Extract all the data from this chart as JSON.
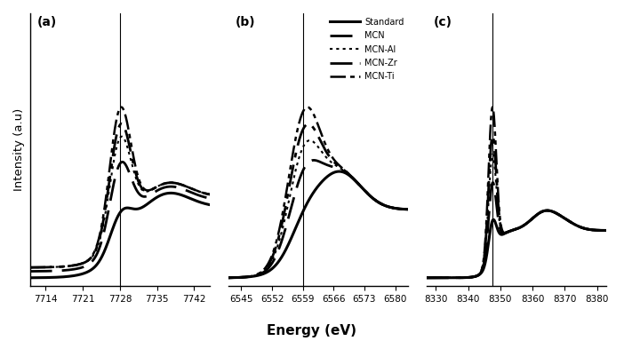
{
  "panels": [
    {
      "label": "(a)",
      "xmin": 7711,
      "xmax": 7745,
      "xticks": [
        7714,
        7721,
        7728,
        7735,
        7742
      ],
      "edge_energy": 7728.0,
      "show_vline": true
    },
    {
      "label": "(b)",
      "xmin": 6542,
      "xmax": 6583,
      "xticks": [
        6545,
        6552,
        6559,
        6566,
        6573,
        6580
      ],
      "edge_energy": 6559.0,
      "show_vline": true,
      "show_legend": true
    },
    {
      "label": "(c)",
      "xmin": 8327,
      "xmax": 8383,
      "xticks": [
        8330,
        8340,
        8350,
        8360,
        8370,
        8380
      ],
      "edge_energy": 8347.5,
      "show_vline": true
    }
  ],
  "xlabel": "Energy (eV)",
  "ylabel": "Intensity (a.u)",
  "background": "#ffffff"
}
